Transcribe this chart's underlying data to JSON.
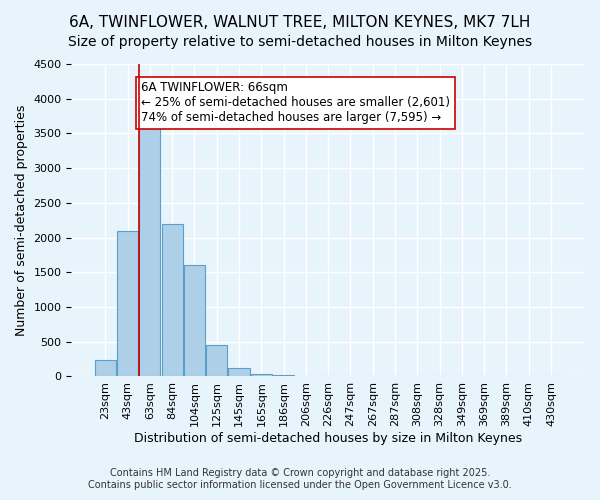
{
  "title": "6A, TWINFLOWER, WALNUT TREE, MILTON KEYNES, MK7 7LH",
  "subtitle": "Size of property relative to semi-detached houses in Milton Keynes",
  "xlabel": "Distribution of semi-detached houses by size in Milton Keynes",
  "ylabel": "Number of semi-detached properties",
  "categories": [
    "23sqm",
    "43sqm",
    "63sqm",
    "84sqm",
    "104sqm",
    "125sqm",
    "145sqm",
    "165sqm",
    "186sqm",
    "206sqm",
    "226sqm",
    "247sqm",
    "267sqm",
    "287sqm",
    "308sqm",
    "328sqm",
    "349sqm",
    "369sqm",
    "389sqm",
    "410sqm",
    "430sqm"
  ],
  "values": [
    230,
    2100,
    3620,
    2200,
    1600,
    460,
    120,
    40,
    20,
    10,
    5,
    3,
    2,
    2,
    1,
    1,
    1,
    0,
    0,
    0,
    0
  ],
  "bar_color": "#aecfe8",
  "bar_edge_color": "#5a9ec9",
  "background_color": "#e8f4fc",
  "grid_color": "#ffffff",
  "vline_x": 1,
  "vline_color": "#cc0000",
  "annotation_title": "6A TWINFLOWER: 66sqm",
  "annotation_line1": "← 25% of semi-detached houses are smaller (2,601)",
  "annotation_line2": "74% of semi-detached houses are larger (7,595) →",
  "annotation_box_color": "#ffffff",
  "annotation_box_edge": "#cc0000",
  "ylim": [
    0,
    4500
  ],
  "yticks": [
    0,
    500,
    1000,
    1500,
    2000,
    2500,
    3000,
    3500,
    4000,
    4500
  ],
  "footer_line1": "Contains HM Land Registry data © Crown copyright and database right 2025.",
  "footer_line2": "Contains public sector information licensed under the Open Government Licence v3.0.",
  "title_fontsize": 11,
  "subtitle_fontsize": 10,
  "label_fontsize": 9,
  "tick_fontsize": 8,
  "annotation_fontsize": 8.5,
  "footer_fontsize": 7
}
